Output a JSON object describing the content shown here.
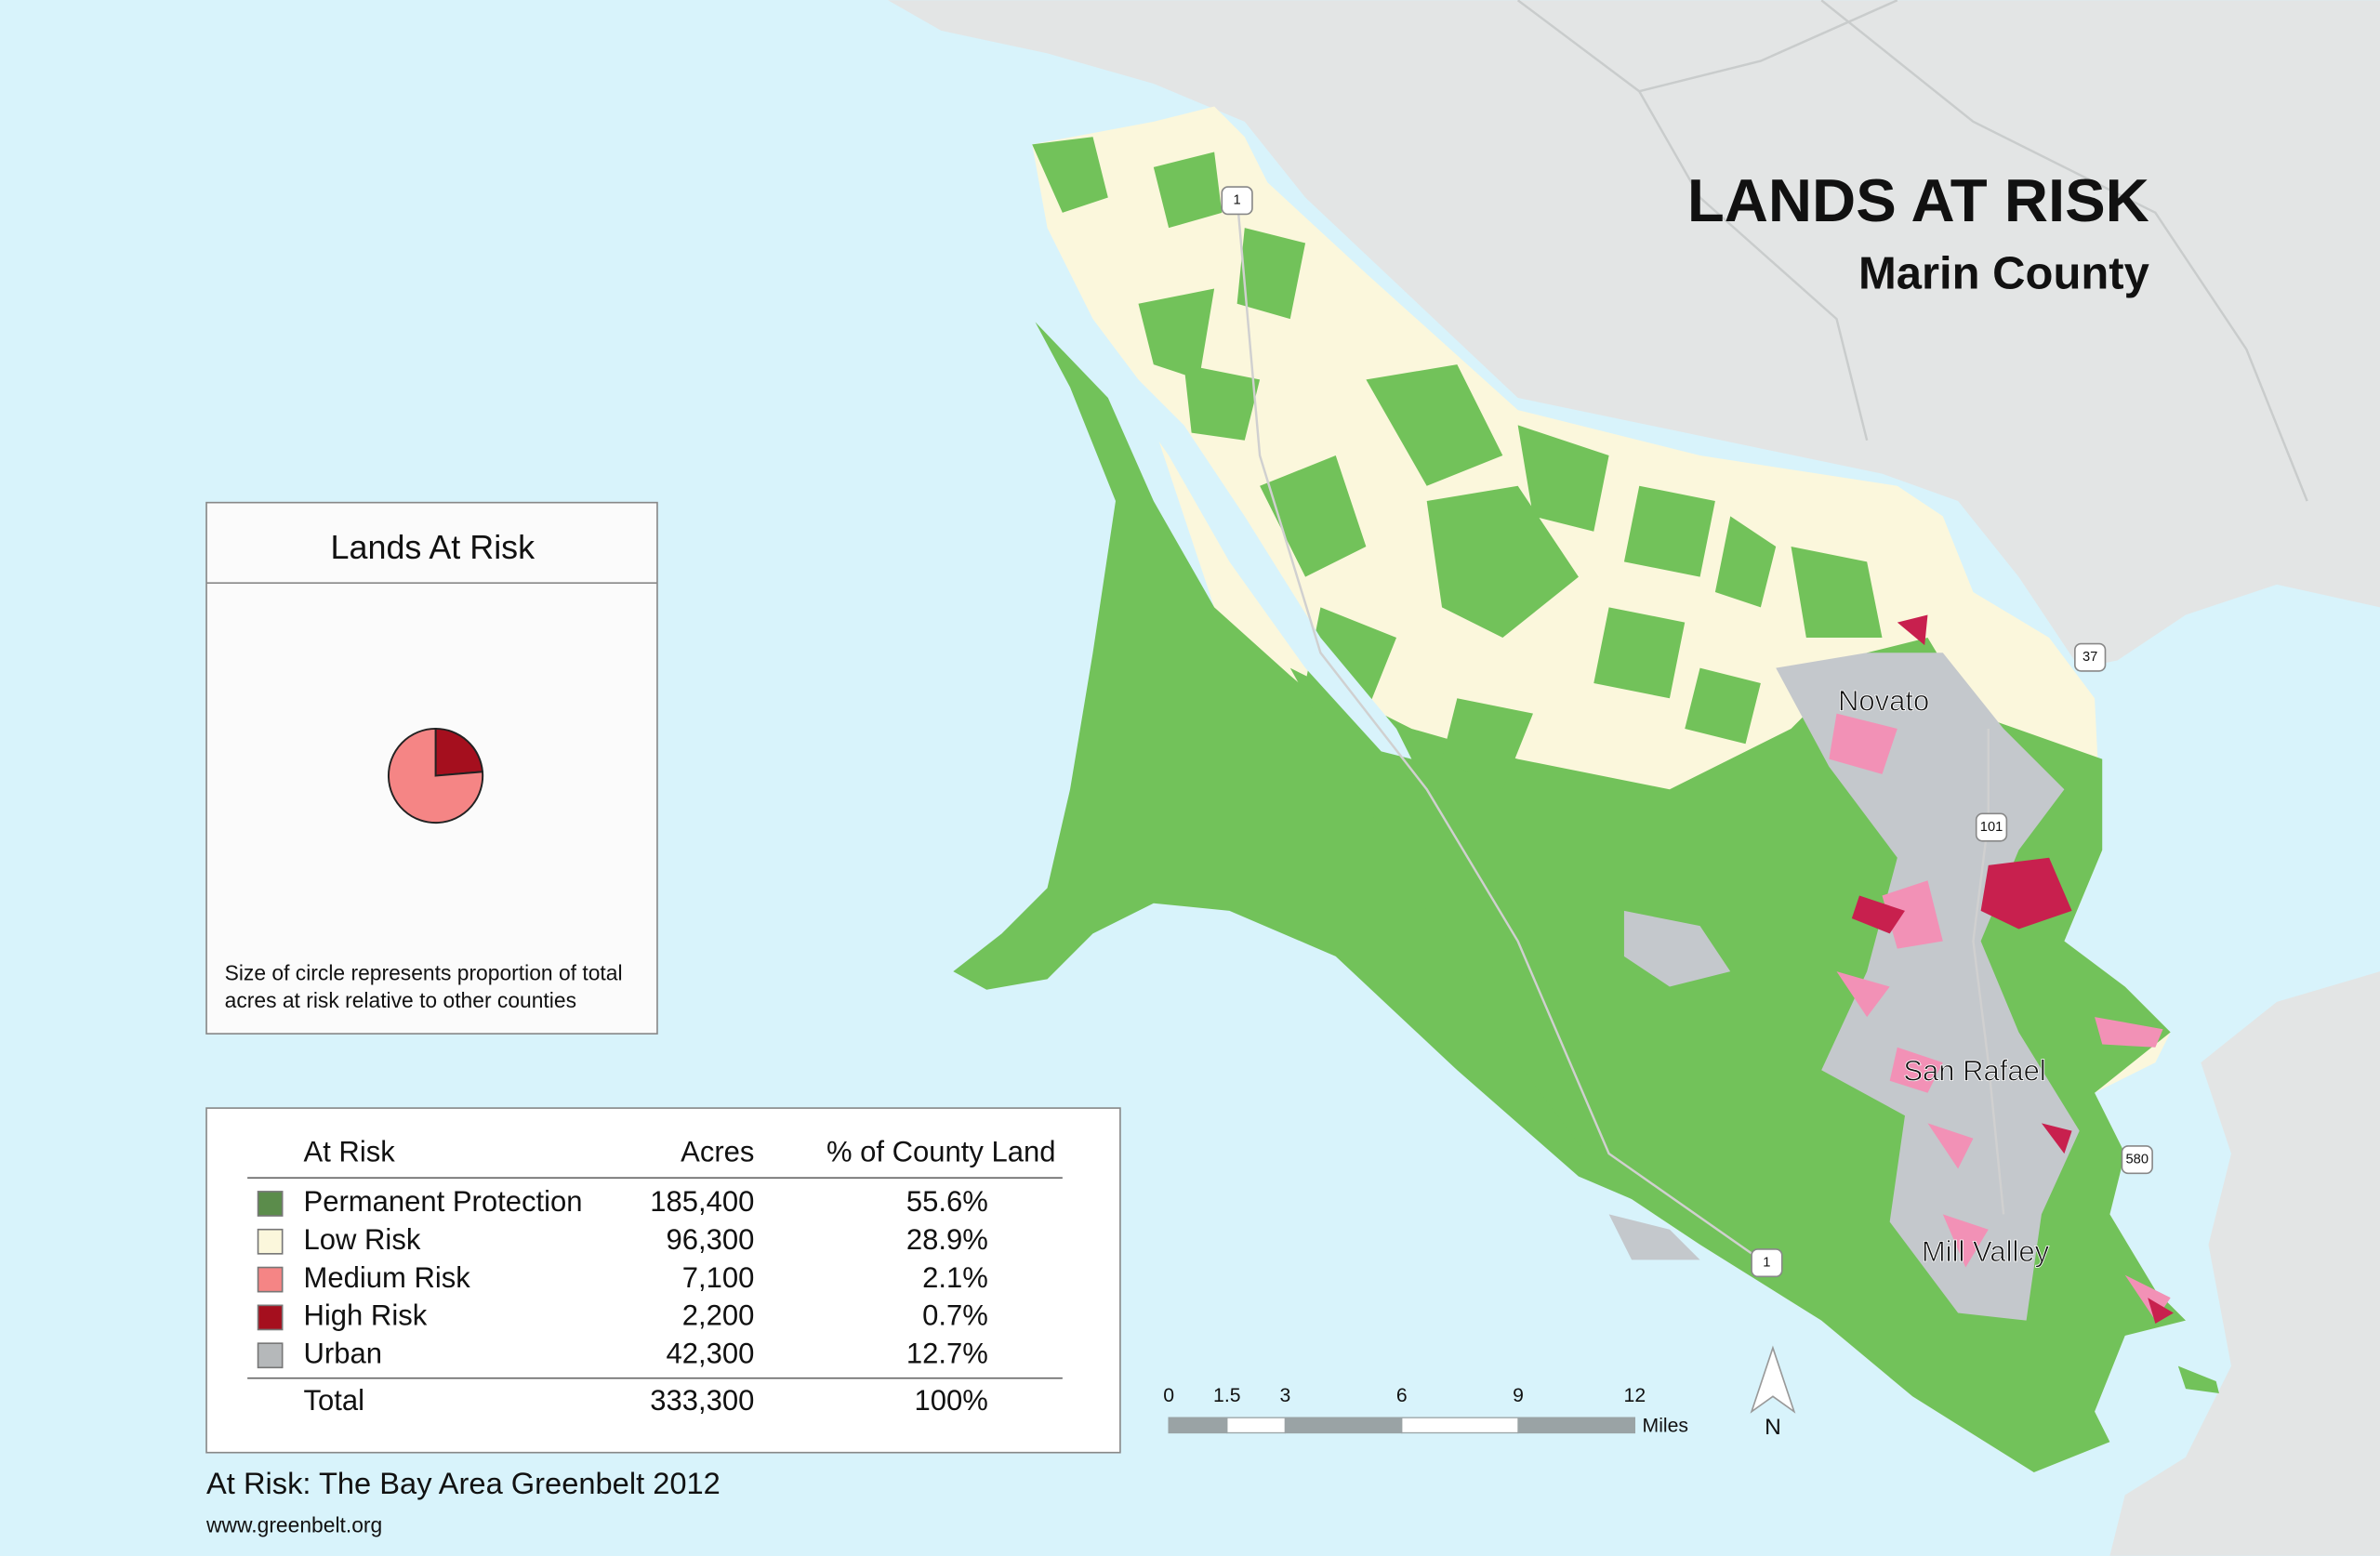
{
  "header": {
    "title": "LANDS AT RISK",
    "subtitle": "Marin County"
  },
  "inset": {
    "title": "Lands At Risk",
    "note_lines": [
      "Size of circle represents proportion of total",
      "acres at risk relative to other counties"
    ]
  },
  "chart_data": {
    "type": "pie",
    "values": [
      7100,
      2200
    ],
    "colors": [
      "#f58585",
      "#a50f1e"
    ]
  },
  "table": {
    "columns": [
      "At Risk",
      "Acres",
      "% of County Land"
    ],
    "rows": [
      {
        "swatch": "#5b8c4b",
        "label": "Permanent Protection",
        "acres": "185,400",
        "percent": "55.6%"
      },
      {
        "swatch": "#fbf7dc",
        "label": "Low Risk",
        "acres": "96,300",
        "percent": "28.9%"
      },
      {
        "swatch": "#f58585",
        "label": "Medium Risk",
        "acres": "7,100",
        "percent": "2.1%"
      },
      {
        "swatch": "#a50f1e",
        "label": "High Risk",
        "acres": "2,200",
        "percent": "0.7%"
      },
      {
        "swatch": "#b5b8ba",
        "label": "Urban",
        "acres": "42,300",
        "percent": "12.7%"
      }
    ],
    "total": {
      "label": "Total",
      "acres": "333,300",
      "percent": "100%"
    }
  },
  "map": {
    "places": [
      "Novato",
      "San Rafael",
      "Mill Valley"
    ],
    "highways": [
      "1",
      "37",
      "101",
      "580",
      "1"
    ]
  },
  "scale_bar": {
    "ticks": [
      0,
      1.5,
      3,
      6,
      9,
      12
    ],
    "unit": "Miles"
  },
  "north": "N",
  "footer": {
    "source": "At Risk: The Bay Area Greenbelt 2012",
    "url": "www.greenbelt.org"
  }
}
